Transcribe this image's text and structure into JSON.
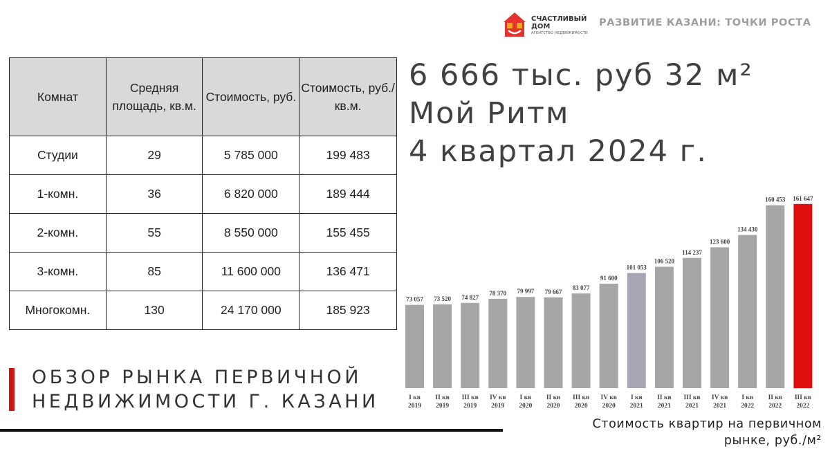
{
  "header": {
    "logo_name_line1": "СЧАСТЛИВЫЙ",
    "logo_name_line2": "ДОМ",
    "logo_sub": "АГЕНТСТВО НЕДВИЖИМОСТИ",
    "title": "РАЗВИТИЕ КАЗАНИ: ТОЧКИ РОСТА",
    "colors": {
      "logo_red": "#e5322d",
      "logo_orange": "#f5a623",
      "title_gray": "#9e9e9e"
    }
  },
  "table": {
    "headers": [
      "Комнат",
      "Средняя площадь, кв.м.",
      "Стоимость, руб.",
      "Стоимость, руб./кв.м."
    ],
    "rows": [
      [
        "Студии",
        "29",
        "5 785 000",
        "199 483"
      ],
      [
        "1-комн.",
        "36",
        "6 820 000",
        "189 444"
      ],
      [
        "2-комн.",
        "55",
        "8 550 000",
        "155 455"
      ],
      [
        "3-комн.",
        "85",
        "11 600 000",
        "136 471"
      ],
      [
        "Многокомн.",
        "130",
        "24 170 000",
        "185 923"
      ]
    ]
  },
  "summary": {
    "line1": "6 666 тыс. руб 32 м²",
    "line2": "Мой Ритм",
    "line3": "4 квартал 2024 г."
  },
  "review": {
    "line1": "ОБЗОР РЫНКА ПЕРВИЧНОЙ",
    "line2": "НЕДВИЖИМОСТИ Г. КАЗАНИ",
    "accent": "#d01515"
  },
  "chart_data": {
    "type": "bar",
    "categories": [
      [
        "I кв",
        "2019"
      ],
      [
        "II кв",
        "2019"
      ],
      [
        "III кв",
        "2019"
      ],
      [
        "IV кв",
        "2019"
      ],
      [
        "I кв",
        "2020"
      ],
      [
        "II кв",
        "2020"
      ],
      [
        "III кв",
        "2020"
      ],
      [
        "IV кв",
        "2020"
      ],
      [
        "I кв",
        "2021"
      ],
      [
        "II кв",
        "2021"
      ],
      [
        "III кв",
        "2021"
      ],
      [
        "IV кв",
        "2021"
      ],
      [
        "I кв",
        "2022"
      ],
      [
        "II кв",
        "2022"
      ],
      [
        "III кв",
        "2022"
      ]
    ],
    "values": [
      73057,
      73520,
      74827,
      78370,
      79997,
      79667,
      83077,
      91600,
      101053,
      106520,
      114237,
      123600,
      134430,
      160453,
      161647
    ],
    "labels": [
      "73 057",
      "73 520",
      "74 827",
      "78 370",
      "79 997",
      "79 667",
      "83 077",
      "91 600",
      "101 053",
      "106 520",
      "114 237",
      "123 600",
      "134 430",
      "160 453",
      "161 647"
    ],
    "ylim": [
      0,
      170000
    ],
    "colors": [
      "#a6a6a6",
      "#a6a6a6",
      "#a6a6a6",
      "#a6a6a6",
      "#a6a6a6",
      "#a6a6a6",
      "#a6a6a6",
      "#a6a6a6",
      "#a6a6b4",
      "#a6a6a6",
      "#a6a6a6",
      "#a6a6a6",
      "#a6a6a6",
      "#a6a6a6",
      "#e00f0f"
    ],
    "caption_line1": "Стоимость квартир на первичном",
    "caption_line2": "рынке, руб./м²",
    "grid": false
  }
}
